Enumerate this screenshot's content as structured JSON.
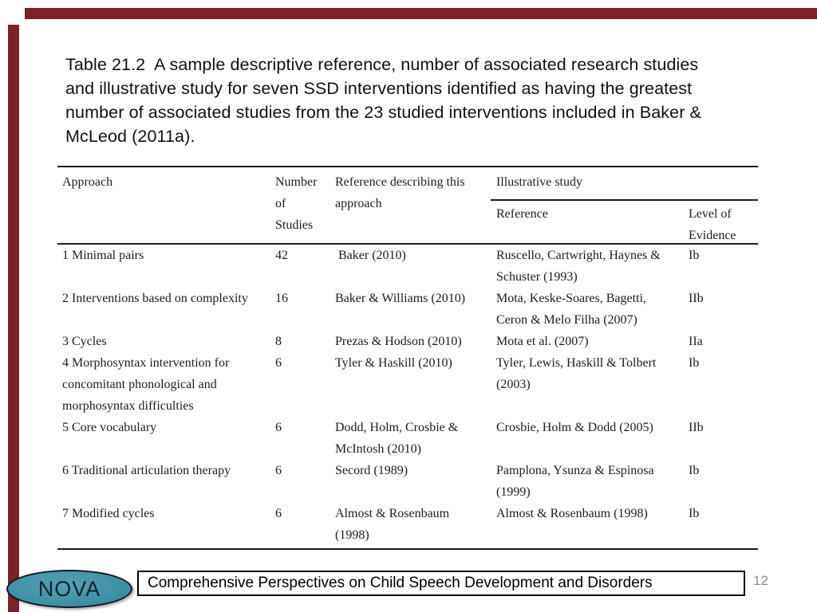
{
  "slide": {
    "accent_color": "#7C2128",
    "title": "Table 21.2  A sample descriptive reference, number of associated research studies\nand illustrative study for seven SSD interventions identified as having the greatest\nnumber of associated studies from the 23 studied interventions included in Baker &\nMcLeod (2011a)."
  },
  "table": {
    "header": {
      "approach": "Approach",
      "number_of_studies": "Number\nof\nStudies",
      "reference_describing": "Reference describing this\napproach",
      "illustrative_study": "Illustrative study",
      "illustrative_reference": "Reference",
      "level_of_evidence": "Level of\nEvidence"
    },
    "rows": [
      {
        "approach": "1 Minimal pairs",
        "studies": "42",
        "reference": " Baker (2010)",
        "illustrative_reference": "Ruscello, Cartwright, Haynes &\nSchuster (1993)",
        "level": "Ib"
      },
      {
        "approach": "2 Interventions based on complexity",
        "studies": "16",
        "reference": "Baker & Williams (2010)",
        "illustrative_reference": "Mota, Keske-Soares, Bagetti,\nCeron & Melo Filha (2007)",
        "level": "IIb"
      },
      {
        "approach": "3 Cycles",
        "studies": "8",
        "reference": "Prezas & Hodson (2010)",
        "illustrative_reference": "Mota et al. (2007)",
        "level": "IIa"
      },
      {
        "approach": "4 Morphosyntax intervention for\nconcomitant phonological and\nmorphosyntax difficulties",
        "studies": "6",
        "reference": "Tyler & Haskill (2010)",
        "illustrative_reference": "Tyler, Lewis, Haskill & Tolbert\n(2003)",
        "level": "Ib"
      },
      {
        "approach": "5 Core vocabulary",
        "studies": "6",
        "reference": "Dodd, Holm, Crosbie &\nMcIntosh (2010)",
        "illustrative_reference": "Crosbie, Holm & Dodd (2005)",
        "level": "IIb"
      },
      {
        "approach": "6 Traditional articulation therapy",
        "studies": "6",
        "reference": "Secord (1989)",
        "illustrative_reference": "Pamplona, Ysunza & Espinosa\n(1999)",
        "level": "Ib"
      },
      {
        "approach": "7 Modified cycles",
        "studies": "6",
        "reference": "Almost & Rosenbaum\n(1998)",
        "illustrative_reference": "Almost & Rosenbaum (1998)",
        "level": "Ib"
      }
    ]
  },
  "footer": {
    "logo_text": "NOVA",
    "logo_color": "#4695AA",
    "text": "Comprehensive Perspectives on Child Speech Development and Disorders",
    "page_number": "12"
  }
}
